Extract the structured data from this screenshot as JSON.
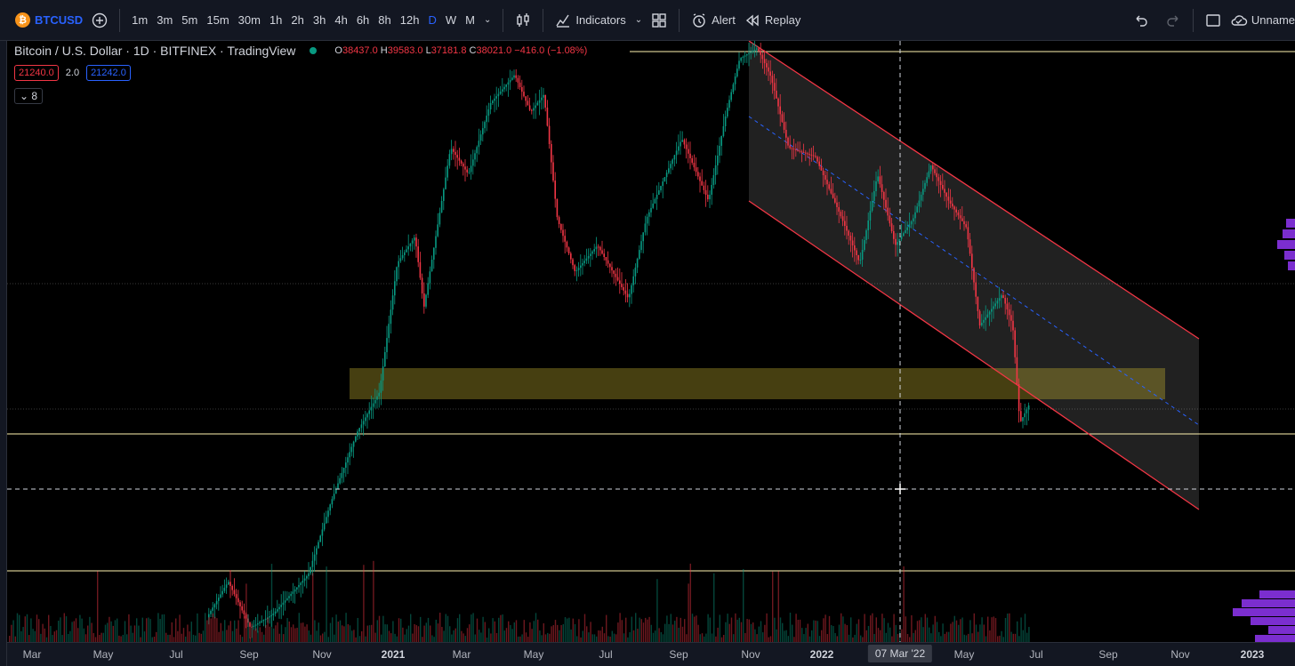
{
  "toolbar": {
    "symbol": "BTCUSD",
    "symbol_logo": "₿",
    "timeframes": [
      "1m",
      "3m",
      "5m",
      "15m",
      "30m",
      "1h",
      "2h",
      "3h",
      "4h",
      "6h",
      "8h",
      "12h",
      "D",
      "W",
      "M"
    ],
    "active_timeframe": "D",
    "indicators_label": "Indicators",
    "alert_label": "Alert",
    "replay_label": "Replay",
    "layout_name": "Unname"
  },
  "legend": {
    "title": "Bitcoin / U.S. Dollar · 1D · BITFINEX · TradingView",
    "open_label": "O",
    "open": "38437.0",
    "high_label": "H",
    "high": "39583.0",
    "low_label": "L",
    "low": "37181.8",
    "close_label": "C",
    "close": "38021.0",
    "change": "−416.0 (−1.08%)",
    "bid": "21240.0",
    "spread": "2.0",
    "ask": "21242.0",
    "indicator_count": "8"
  },
  "time_axis": {
    "ticks": [
      {
        "label": "Mar",
        "bold": false
      },
      {
        "label": "May",
        "bold": false
      },
      {
        "label": "Jul",
        "bold": false
      },
      {
        "label": "Sep",
        "bold": false
      },
      {
        "label": "Nov",
        "bold": false
      },
      {
        "label": "2021",
        "bold": true
      },
      {
        "label": "Mar",
        "bold": false
      },
      {
        "label": "May",
        "bold": false
      },
      {
        "label": "Jul",
        "bold": false
      },
      {
        "label": "Sep",
        "bold": false
      },
      {
        "label": "Nov",
        "bold": false
      },
      {
        "label": "2022",
        "bold": true
      },
      {
        "label": "May",
        "bold": false
      },
      {
        "label": "Jul",
        "bold": false
      },
      {
        "label": "Sep",
        "bold": false
      },
      {
        "label": "Nov",
        "bold": false
      },
      {
        "label": "2023",
        "bold": true
      }
    ],
    "crosshair_date": "07 Mar '22"
  },
  "colors": {
    "up": "#089981",
    "down": "#f23645",
    "channel_line": "#f23645",
    "zone": "#c8b432",
    "horizontal_line": "#fff3b0"
  }
}
